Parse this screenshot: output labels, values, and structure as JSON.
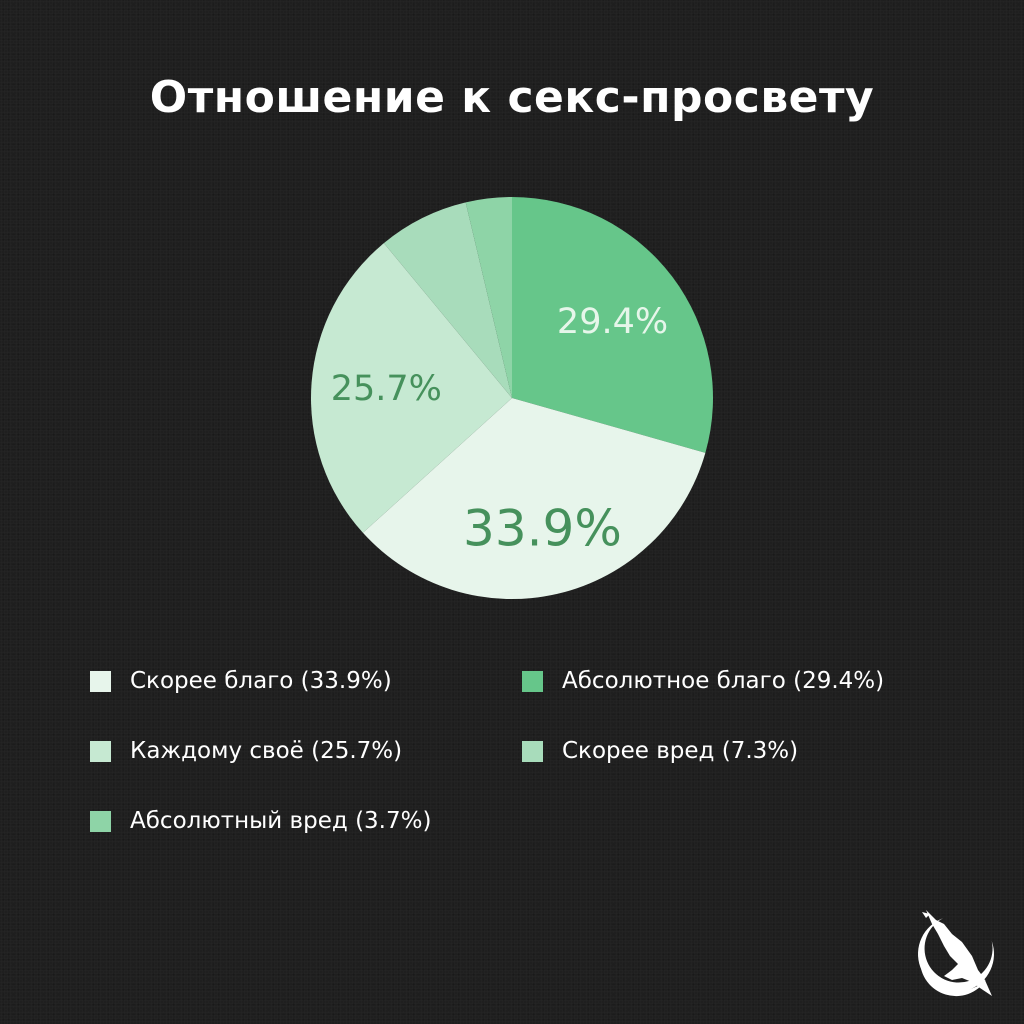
{
  "title": "Отношение к секс-просвету",
  "chart_data": {
    "type": "pie",
    "title": "Отношение к секс-просвету",
    "slices": [
      {
        "label": "Абсолютное благо",
        "value": 29.4,
        "display": "29.4%",
        "color": "#66c68a",
        "label_color": "#e6f6ea"
      },
      {
        "label": "Скорее благо",
        "value": 33.9,
        "display": "33.9%",
        "color": "#e7f5eb",
        "label_color": "#46915c"
      },
      {
        "label": "Каждому своё",
        "value": 25.7,
        "display": "25.7%",
        "color": "#c6e9d2",
        "label_color": "#46915c"
      },
      {
        "label": "Скорее вред",
        "value": 7.3,
        "display": "",
        "color": "#a8dcbb",
        "label_color": "#46915c"
      },
      {
        "label": "Абсолютный вред",
        "value": 3.7,
        "display": "",
        "color": "#8ed4a7",
        "label_color": "#46915c"
      }
    ],
    "start_angle_deg": 0,
    "direction": "clockwise",
    "legend_position": "bottom"
  },
  "legend": [
    {
      "label": "Скорее благо (33.9%)",
      "color": "#e7f5eb"
    },
    {
      "label": "Абсолютное благо (29.4%)",
      "color": "#66c68a"
    },
    {
      "label": "Каждому своё (25.7%)",
      "color": "#c6e9d2"
    },
    {
      "label": "Скорее вред (7.3%)",
      "color": "#a8dcbb"
    },
    {
      "label": "Абсолютный вред (3.7%)",
      "color": "#8ed4a7"
    }
  ],
  "logo": {
    "icon": "eagle-emblem-icon",
    "color": "#ffffff"
  }
}
